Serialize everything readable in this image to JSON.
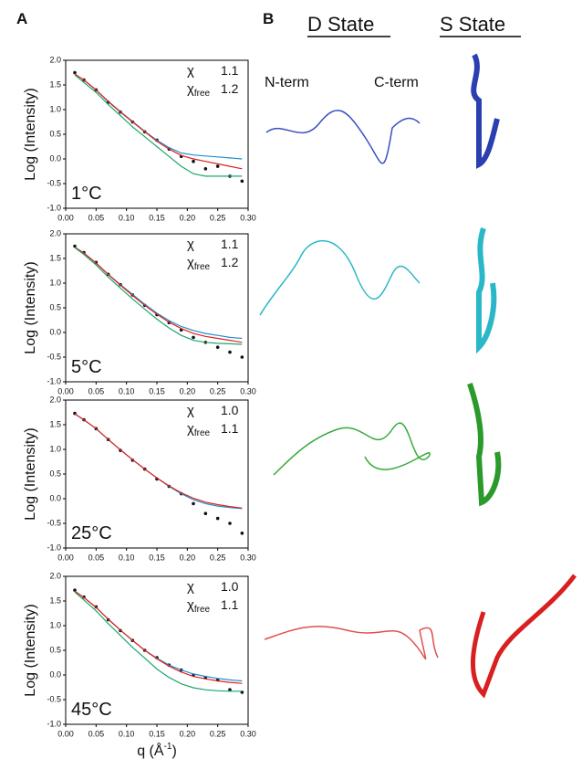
{
  "panel_a": "A",
  "panel_b": "B",
  "structures": {
    "d_state": "D State",
    "s_state": "S State",
    "n_term": "N-term",
    "c_term": "C-term"
  },
  "chart_data": [
    {
      "type": "line",
      "ylabel": "Log (Intensity)",
      "temperature": "1°C",
      "chi": "χ",
      "chi_value": "1.1",
      "chi_free": "χ",
      "chi_free_sub": "free",
      "chi_free_value": "1.2",
      "xlim": [
        0,
        0.3
      ],
      "ylim": [
        -1,
        2
      ],
      "xticks": [
        {
          "value": 0,
          "label": "0.00"
        },
        0.05,
        {
          "value": 0.1,
          "label": "0.10"
        },
        0.15,
        {
          "value": 0.2,
          "label": "0.20"
        },
        0.25,
        {
          "value": 0.3,
          "label": "0.30"
        }
      ],
      "yticks": [
        {
          "value": 2,
          "label": "2.0"
        },
        1.5,
        {
          "value": 1,
          "label": "1.0"
        },
        0.5,
        {
          "value": 0,
          "label": "0.0"
        },
        -0.5,
        {
          "value": -1,
          "label": "-1.0"
        }
      ],
      "x": [
        0.015,
        0.03,
        0.05,
        0.07,
        0.09,
        0.11,
        0.13,
        0.15,
        0.17,
        0.19,
        0.21,
        0.23,
        0.25,
        0.27,
        0.29
      ],
      "series": [
        {
          "mode": "markers",
          "color": "#111111",
          "values": [
            1.75,
            1.6,
            1.4,
            1.15,
            0.95,
            0.75,
            0.55,
            0.38,
            0.2,
            0.05,
            -0.05,
            -0.2,
            -0.15,
            -0.35,
            -0.45
          ]
        },
        {
          "mode": "lines",
          "color": "#1f8fd0",
          "values": [
            1.72,
            1.6,
            1.4,
            1.17,
            0.96,
            0.76,
            0.56,
            0.38,
            0.23,
            0.12,
            0.08,
            0.06,
            0.04,
            0.02,
            0.0
          ]
        },
        {
          "mode": "lines",
          "color": "#e0201b",
          "values": [
            1.72,
            1.6,
            1.4,
            1.16,
            0.95,
            0.75,
            0.55,
            0.36,
            0.2,
            0.07,
            0.0,
            -0.05,
            -0.1,
            -0.15,
            -0.2
          ]
        },
        {
          "mode": "lines",
          "color": "#1aa86a",
          "values": [
            1.7,
            1.55,
            1.35,
            1.1,
            0.88,
            0.65,
            0.45,
            0.25,
            0.05,
            -0.15,
            -0.3,
            -0.35,
            -0.35,
            -0.35,
            -0.35
          ]
        }
      ]
    },
    {
      "type": "line",
      "ylabel": "Log (Intensity)",
      "temperature": "5°C",
      "chi": "χ",
      "chi_value": "1.1",
      "chi_free": "χ",
      "chi_free_sub": "free",
      "chi_free_value": "1.2",
      "xlim": [
        0,
        0.3
      ],
      "ylim": [
        -1,
        2
      ],
      "xticks": [
        {
          "value": 0,
          "label": "0.00"
        },
        0.05,
        {
          "value": 0.1,
          "label": "0.10"
        },
        0.15,
        {
          "value": 0.2,
          "label": "0.20"
        },
        0.25,
        {
          "value": 0.3,
          "label": "0.30"
        }
      ],
      "yticks": [
        {
          "value": 2,
          "label": "2.0"
        },
        1.5,
        {
          "value": 1,
          "label": "1.0"
        },
        0.5,
        {
          "value": 0,
          "label": "0.0"
        },
        -0.5,
        {
          "value": -1,
          "label": "-1.0"
        }
      ],
      "x": [
        0.015,
        0.03,
        0.05,
        0.07,
        0.09,
        0.11,
        0.13,
        0.15,
        0.17,
        0.19,
        0.21,
        0.23,
        0.25,
        0.27,
        0.29
      ],
      "series": [
        {
          "mode": "markers",
          "color": "#111111",
          "values": [
            1.75,
            1.62,
            1.42,
            1.18,
            0.97,
            0.76,
            0.55,
            0.36,
            0.2,
            0.05,
            -0.1,
            -0.2,
            -0.3,
            -0.4,
            -0.5
          ]
        },
        {
          "mode": "lines",
          "color": "#1f8fd0",
          "values": [
            1.73,
            1.61,
            1.41,
            1.18,
            0.97,
            0.77,
            0.57,
            0.39,
            0.24,
            0.12,
            0.04,
            -0.02,
            -0.06,
            -0.1,
            -0.12
          ]
        },
        {
          "mode": "lines",
          "color": "#e0201b",
          "values": [
            1.73,
            1.61,
            1.41,
            1.17,
            0.96,
            0.75,
            0.55,
            0.37,
            0.21,
            0.08,
            -0.02,
            -0.08,
            -0.12,
            -0.16,
            -0.2
          ]
        },
        {
          "mode": "lines",
          "color": "#1aa86a",
          "values": [
            1.72,
            1.58,
            1.37,
            1.12,
            0.9,
            0.68,
            0.47,
            0.27,
            0.09,
            -0.06,
            -0.16,
            -0.2,
            -0.22,
            -0.23,
            -0.24
          ]
        }
      ]
    },
    {
      "type": "line",
      "ylabel": "Log (Intensity)",
      "temperature": "25°C",
      "chi": "χ",
      "chi_value": "1.0",
      "chi_free": "χ",
      "chi_free_sub": "free",
      "chi_free_value": "1.1",
      "xlim": [
        0,
        0.3
      ],
      "ylim": [
        -1,
        2
      ],
      "xticks": [
        {
          "value": 0,
          "label": "0.00"
        },
        0.05,
        {
          "value": 0.1,
          "label": "0.10"
        },
        0.15,
        {
          "value": 0.2,
          "label": "0.20"
        },
        0.25,
        {
          "value": 0.3,
          "label": "0.30"
        }
      ],
      "yticks": [
        {
          "value": 2,
          "label": "2.0"
        },
        1.5,
        {
          "value": 1,
          "label": "1.0"
        },
        0.5,
        {
          "value": 0,
          "label": "0.0"
        },
        -0.5,
        {
          "value": -1,
          "label": "-1.0"
        }
      ],
      "x": [
        0.015,
        0.03,
        0.05,
        0.07,
        0.09,
        0.11,
        0.13,
        0.15,
        0.17,
        0.19,
        0.21,
        0.23,
        0.25,
        0.27,
        0.29
      ],
      "series": [
        {
          "mode": "markers",
          "color": "#111111",
          "values": [
            1.73,
            1.6,
            1.42,
            1.2,
            0.98,
            0.78,
            0.6,
            0.4,
            0.25,
            0.1,
            -0.1,
            -0.3,
            -0.4,
            -0.5,
            -0.7
          ]
        },
        {
          "mode": "lines",
          "color": "#1f8fd0",
          "values": [
            1.72,
            1.6,
            1.42,
            1.2,
            0.99,
            0.79,
            0.6,
            0.42,
            0.25,
            0.1,
            -0.02,
            -0.1,
            -0.15,
            -0.18,
            -0.2
          ]
        },
        {
          "mode": "lines",
          "color": "#e0201b",
          "values": [
            1.72,
            1.6,
            1.42,
            1.2,
            0.99,
            0.79,
            0.6,
            0.42,
            0.26,
            0.12,
            0.01,
            -0.07,
            -0.12,
            -0.16,
            -0.19
          ]
        }
      ]
    },
    {
      "type": "line",
      "ylabel": "Log (Intensity)",
      "temperature": "45°C",
      "chi": "χ",
      "chi_value": "1.0",
      "chi_free": "χ",
      "chi_free_sub": "free",
      "chi_free_value": "1.1",
      "xlabel": "q (Å",
      "xlabel_sup": "-1",
      "xlabel_end": ")",
      "xlim": [
        0,
        0.3
      ],
      "ylim": [
        -1,
        2
      ],
      "xticks": [
        {
          "value": 0,
          "label": "0.00"
        },
        0.05,
        {
          "value": 0.1,
          "label": "0.10"
        },
        0.15,
        {
          "value": 0.2,
          "label": "0.20"
        },
        0.25,
        {
          "value": 0.3,
          "label": "0.30"
        }
      ],
      "yticks": [
        {
          "value": 2,
          "label": "2.0"
        },
        1.5,
        {
          "value": 1,
          "label": "1.0"
        },
        0.5,
        {
          "value": 0,
          "label": "0.0"
        },
        -0.5,
        {
          "value": -1,
          "label": "-1.0"
        }
      ],
      "x": [
        0.015,
        0.03,
        0.05,
        0.07,
        0.09,
        0.11,
        0.13,
        0.15,
        0.17,
        0.19,
        0.21,
        0.23,
        0.25,
        0.27,
        0.29
      ],
      "series": [
        {
          "mode": "markers",
          "color": "#111111",
          "values": [
            1.72,
            1.58,
            1.38,
            1.12,
            0.9,
            0.7,
            0.5,
            0.35,
            0.2,
            0.1,
            0.0,
            -0.05,
            -0.1,
            -0.3,
            -0.35
          ]
        },
        {
          "mode": "lines",
          "color": "#1f8fd0",
          "values": [
            1.7,
            1.57,
            1.37,
            1.13,
            0.91,
            0.7,
            0.5,
            0.34,
            0.2,
            0.1,
            0.02,
            -0.03,
            -0.07,
            -0.1,
            -0.12
          ]
        },
        {
          "mode": "lines",
          "color": "#e0201b",
          "values": [
            1.7,
            1.57,
            1.37,
            1.13,
            0.91,
            0.7,
            0.5,
            0.33,
            0.18,
            0.06,
            -0.03,
            -0.08,
            -0.12,
            -0.15,
            -0.17
          ]
        },
        {
          "mode": "lines",
          "color": "#1aa86a",
          "values": [
            1.68,
            1.52,
            1.3,
            1.04,
            0.8,
            0.56,
            0.34,
            0.12,
            -0.05,
            -0.18,
            -0.26,
            -0.3,
            -0.32,
            -0.33,
            -0.33
          ]
        }
      ]
    }
  ]
}
